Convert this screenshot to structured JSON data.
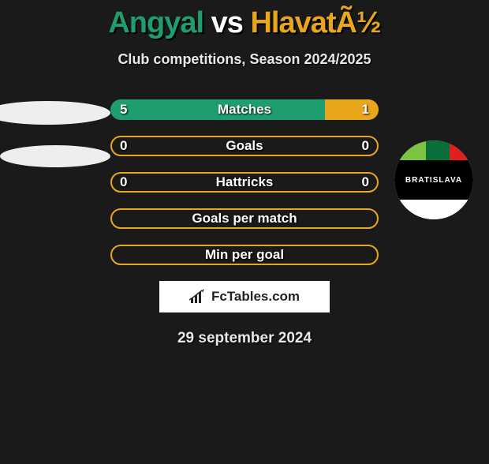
{
  "colors": {
    "bg": "#1a1a1a",
    "player1": "#1e9e6e",
    "player2": "#e8a71a",
    "text": "#ffffff"
  },
  "header": {
    "player1": "Angyal",
    "vs": "vs",
    "player2": "HlavatÃ½",
    "subtitle": "Club competitions, Season 2024/2025"
  },
  "bars": [
    {
      "label": "Matches",
      "left_value": "5",
      "right_value": "1",
      "left_pct": 80,
      "right_pct": 20,
      "outline_only": false,
      "show_values": true
    },
    {
      "label": "Goals",
      "left_value": "0",
      "right_value": "0",
      "left_pct": 0,
      "right_pct": 0,
      "outline_only": true,
      "show_values": true
    },
    {
      "label": "Hattricks",
      "left_value": "0",
      "right_value": "0",
      "left_pct": 0,
      "right_pct": 0,
      "outline_only": true,
      "show_values": true
    },
    {
      "label": "Goals per match",
      "left_value": "",
      "right_value": "",
      "left_pct": 0,
      "right_pct": 0,
      "outline_only": true,
      "show_values": false
    },
    {
      "label": "Min per goal",
      "left_value": "",
      "right_value": "",
      "left_pct": 0,
      "right_pct": 0,
      "outline_only": true,
      "show_values": false
    }
  ],
  "brand": "FcTables.com",
  "club_badge": {
    "text": "BRATISLAVA"
  },
  "date": "29 september 2024"
}
